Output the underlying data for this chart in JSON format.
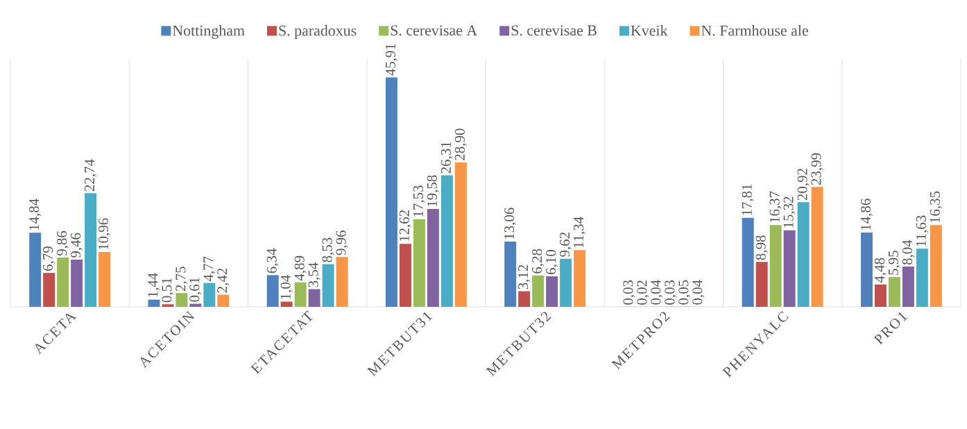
{
  "chart_data": {
    "type": "bar",
    "categories": [
      "ACETA",
      "ACETOIN",
      "ETACETAT",
      "METBUT31",
      "METBUT32",
      "METPRO2",
      "PHENYALC",
      "PRO1"
    ],
    "series": [
      {
        "name": "Nottingham",
        "color": "#4f81bd",
        "values": [
          14.84,
          1.44,
          6.34,
          45.91,
          13.06,
          0.03,
          17.81,
          14.86
        ],
        "value_labels": [
          "14,84",
          "1,44",
          "6,34",
          "45,91",
          "13,06",
          "0,03",
          "17,81",
          "14,86"
        ]
      },
      {
        "name": "S. paradoxus",
        "color": "#c0504d",
        "values": [
          6.79,
          0.51,
          1.04,
          12.62,
          3.12,
          0.02,
          8.98,
          4.48
        ],
        "value_labels": [
          "6,79",
          "0,51",
          "1,04",
          "12,62",
          "3,12",
          "0,02",
          "8,98",
          "4,48"
        ]
      },
      {
        "name": "S. cerevisae A",
        "color": "#9bbb59",
        "values": [
          9.86,
          2.75,
          4.89,
          17.53,
          6.28,
          0.04,
          16.37,
          5.95
        ],
        "value_labels": [
          "9,86",
          "2,75",
          "4,89",
          "17,53",
          "6,28",
          "0,04",
          "16,37",
          "5,95"
        ]
      },
      {
        "name": "S. cerevisae B",
        "color": "#8064a2",
        "values": [
          9.46,
          0.61,
          3.54,
          19.58,
          6.1,
          0.03,
          15.32,
          8.04
        ],
        "value_labels": [
          "9,46",
          "0,61",
          "3,54",
          "19,58",
          "6,10",
          "0,03",
          "15,32",
          "8,04"
        ]
      },
      {
        "name": "Kveik",
        "color": "#4bacc6",
        "values": [
          22.74,
          4.77,
          8.53,
          26.31,
          9.62,
          0.05,
          20.92,
          11.63
        ],
        "value_labels": [
          "22,74",
          "4,77",
          "8,53",
          "26,31",
          "9,62",
          "0,05",
          "20,92",
          "11,63"
        ]
      },
      {
        "name": "N. Farmhouse ale",
        "color": "#f79646",
        "values": [
          10.96,
          2.42,
          9.96,
          28.9,
          11.34,
          0.04,
          23.99,
          16.35
        ],
        "value_labels": [
          "10,96",
          "2,42",
          "9,96",
          "28,90",
          "11,34",
          "0,04",
          "23,99",
          "16,35"
        ]
      }
    ],
    "legend": "top",
    "grid": "x"
  }
}
